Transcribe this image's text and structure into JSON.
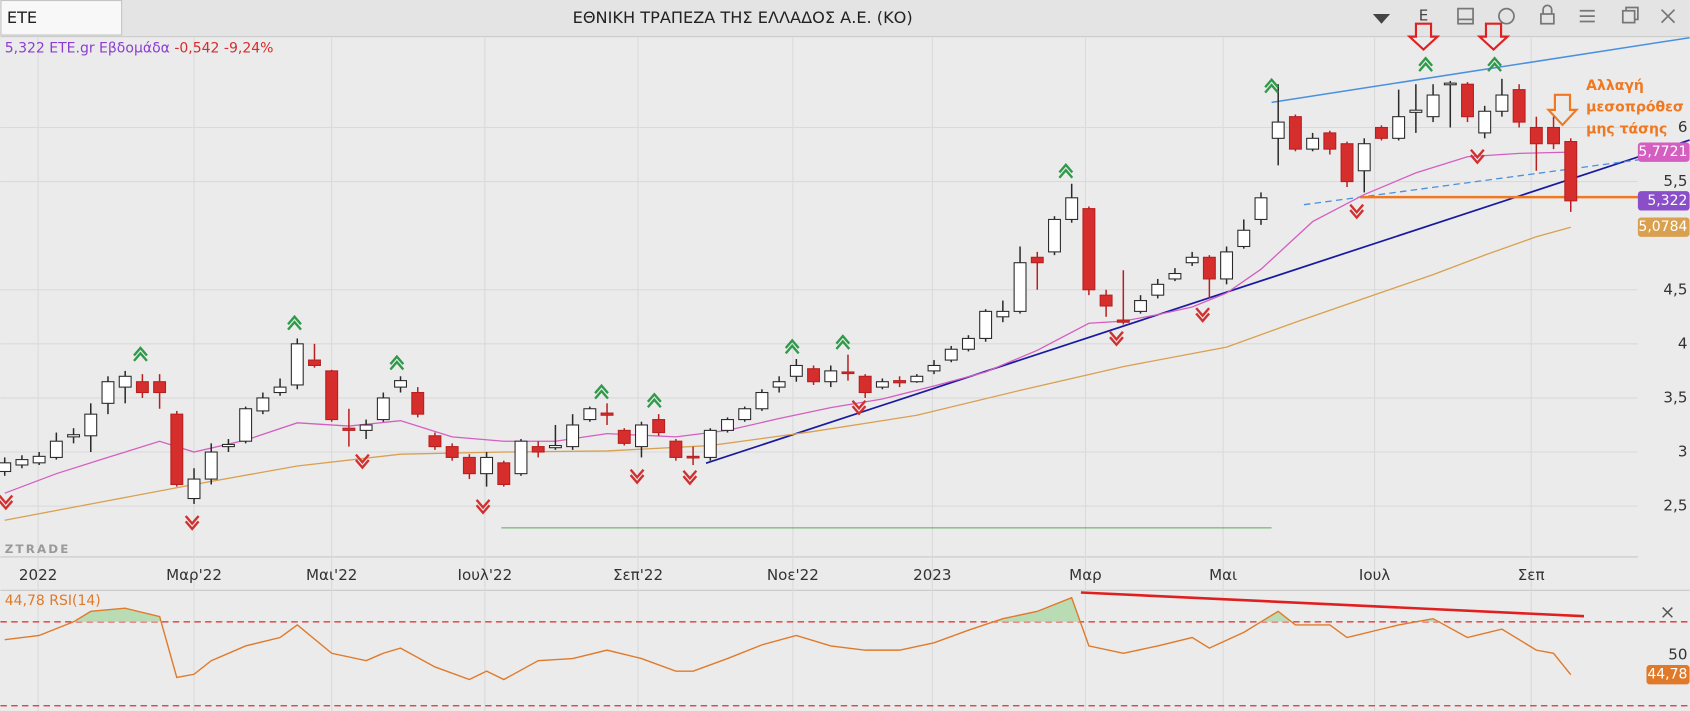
{
  "header": {
    "symbol": "ETE",
    "title": "ΕΘΝΙΚΗ ΤΡΑΠΕΖΑ ΤΗΣ ΕΛΛΑΔΟΣ Α.Ε. (ΚΟ)",
    "toolbar_letter": "Ε"
  },
  "chart_data": [
    {
      "type": "candlestick",
      "legend": {
        "instrument": "5,322 ETE.gr Εβδομάδα",
        "change": "-0,542 -9,24%"
      },
      "watermark": "ZTRADE",
      "annotation": [
        "Αλλαγή",
        "μεσοπρόθεσ",
        "μης τάσης"
      ],
      "open": [
        2.82,
        2.88,
        2.9,
        2.95,
        3.14,
        3.15,
        3.45,
        3.6,
        3.65,
        3.65,
        3.35,
        2.57,
        2.75,
        3.05,
        3.1,
        3.38,
        3.55,
        3.62,
        3.85,
        3.75,
        3.22,
        3.2,
        3.3,
        3.6,
        3.55,
        3.15,
        3.05,
        2.95,
        2.8,
        2.9,
        2.8,
        3.05,
        3.04,
        3.05,
        3.3,
        3.36,
        3.2,
        3.05,
        3.3,
        3.1,
        2.96,
        2.95,
        3.2,
        3.3,
        3.4,
        3.6,
        3.7,
        3.77,
        3.65,
        3.74,
        3.7,
        3.6,
        3.66,
        3.65,
        3.75,
        3.85,
        3.95,
        4.05,
        4.25,
        4.3,
        4.8,
        4.85,
        5.15,
        5.25,
        4.45,
        4.22,
        4.3,
        4.45,
        4.6,
        4.75,
        4.8,
        4.6,
        4.9,
        5.15,
        5.9,
        6.1,
        5.8,
        5.95,
        5.85,
        5.6,
        6.0,
        5.9,
        6.14,
        6.1,
        6.4,
        6.4,
        5.95,
        6.15,
        6.35,
        6.0,
        6.0,
        5.87
      ],
      "high": [
        2.95,
        2.97,
        3.0,
        3.18,
        3.22,
        3.45,
        3.7,
        3.75,
        3.72,
        3.72,
        3.38,
        2.85,
        3.08,
        3.12,
        3.42,
        3.55,
        3.68,
        4.05,
        4.0,
        3.76,
        3.4,
        3.3,
        3.55,
        3.7,
        3.6,
        3.18,
        3.08,
        2.98,
        3.0,
        2.92,
        3.12,
        3.1,
        3.25,
        3.35,
        3.42,
        3.45,
        3.22,
        3.28,
        3.35,
        3.12,
        3.05,
        3.22,
        3.32,
        3.42,
        3.58,
        3.7,
        3.86,
        3.8,
        3.8,
        3.9,
        3.72,
        3.68,
        3.7,
        3.72,
        3.85,
        3.98,
        4.08,
        4.32,
        4.4,
        4.9,
        4.85,
        5.18,
        5.48,
        5.27,
        4.5,
        4.68,
        4.45,
        4.6,
        4.7,
        4.85,
        4.82,
        4.9,
        5.15,
        5.4,
        6.4,
        6.12,
        5.95,
        5.97,
        5.87,
        5.9,
        6.02,
        6.35,
        6.4,
        6.4,
        6.43,
        6.42,
        6.2,
        6.45,
        6.4,
        6.1,
        6.1,
        5.9
      ],
      "low": [
        2.78,
        2.85,
        2.88,
        2.93,
        3.08,
        3.0,
        3.35,
        3.45,
        3.5,
        3.4,
        2.68,
        2.52,
        2.7,
        3.0,
        3.08,
        3.35,
        3.52,
        3.58,
        3.78,
        3.28,
        3.05,
        3.12,
        3.28,
        3.55,
        3.32,
        3.02,
        2.92,
        2.75,
        2.68,
        2.68,
        2.78,
        2.95,
        3.02,
        3.02,
        3.28,
        3.25,
        3.06,
        2.95,
        3.15,
        2.92,
        2.88,
        2.92,
        3.18,
        3.28,
        3.38,
        3.55,
        3.65,
        3.62,
        3.6,
        3.66,
        3.5,
        3.58,
        3.6,
        3.64,
        3.72,
        3.83,
        3.93,
        4.02,
        4.2,
        4.28,
        4.5,
        4.82,
        5.12,
        4.45,
        4.25,
        4.18,
        4.28,
        4.42,
        4.58,
        4.72,
        4.42,
        4.55,
        4.88,
        5.1,
        5.65,
        5.78,
        5.78,
        5.75,
        5.45,
        5.4,
        5.88,
        5.88,
        5.95,
        6.05,
        6.0,
        6.05,
        5.9,
        6.1,
        6.0,
        5.6,
        5.8,
        5.22
      ],
      "close": [
        2.9,
        2.93,
        2.96,
        3.1,
        3.16,
        3.35,
        3.65,
        3.7,
        3.55,
        3.55,
        2.7,
        2.75,
        3.0,
        3.07,
        3.4,
        3.5,
        3.6,
        4.0,
        3.8,
        3.3,
        3.2,
        3.25,
        3.5,
        3.66,
        3.35,
        3.05,
        2.95,
        2.8,
        2.95,
        2.7,
        3.1,
        3.0,
        3.06,
        3.25,
        3.4,
        3.34,
        3.08,
        3.25,
        3.18,
        2.95,
        2.95,
        3.2,
        3.3,
        3.4,
        3.55,
        3.65,
        3.8,
        3.65,
        3.75,
        3.73,
        3.55,
        3.65,
        3.64,
        3.7,
        3.8,
        3.95,
        4.05,
        4.3,
        4.3,
        4.75,
        4.75,
        5.15,
        5.35,
        4.5,
        4.35,
        4.2,
        4.4,
        4.55,
        4.65,
        4.8,
        4.6,
        4.85,
        5.05,
        5.35,
        6.05,
        5.8,
        5.9,
        5.8,
        5.5,
        5.85,
        5.9,
        6.1,
        6.16,
        6.3,
        6.41,
        6.1,
        6.15,
        6.3,
        6.05,
        5.85,
        5.85,
        5.322
      ],
      "up_color": "#ffffff",
      "down_color": "#d62d2d",
      "ma_fast": {
        "color": "#d45fc0",
        "x": [
          0,
          3,
          6,
          9,
          11,
          14,
          17,
          20,
          23,
          26,
          29,
          32,
          35,
          39,
          42,
          45,
          48,
          51,
          54,
          57,
          60,
          63,
          65,
          67,
          69,
          71,
          73,
          76,
          79,
          82,
          85,
          88,
          91
        ],
        "values": [
          2.62,
          2.8,
          2.95,
          3.1,
          3.0,
          3.11,
          3.27,
          3.24,
          3.29,
          3.14,
          3.1,
          3.1,
          3.17,
          3.14,
          3.2,
          3.31,
          3.41,
          3.49,
          3.61,
          3.74,
          3.94,
          4.19,
          4.21,
          4.27,
          4.34,
          4.47,
          4.69,
          5.13,
          5.38,
          5.58,
          5.73,
          5.76,
          5.7721
        ],
        "tag": "5,7721"
      },
      "ma_slow": {
        "color": "#d9a050",
        "x": [
          0,
          6,
          11,
          17,
          23,
          29,
          35,
          41,
          47,
          53,
          59,
          65,
          71,
          75,
          79,
          83,
          86,
          89,
          91
        ],
        "values": [
          2.37,
          2.55,
          2.7,
          2.87,
          2.98,
          3.0,
          3.01,
          3.06,
          3.19,
          3.34,
          3.57,
          3.79,
          3.97,
          4.2,
          4.42,
          4.64,
          4.82,
          4.99,
          5.0784
        ],
        "tag": "5,0784"
      },
      "close_tag": "5,322",
      "xlim": [
        -0.25,
        94.9
      ],
      "xticks": [
        {
          "value": 1.94,
          "label": "2022"
        },
        {
          "value": 11.0,
          "label": "Μαρ'22"
        },
        {
          "value": 19.0,
          "label": "Μαι'22"
        },
        {
          "value": 27.9,
          "label": "Ιουλ'22"
        },
        {
          "value": 36.8,
          "label": "Σεπ'22"
        },
        {
          "value": 45.8,
          "label": "Νοε'22"
        },
        {
          "value": 53.9,
          "label": "2023"
        },
        {
          "value": 62.8,
          "label": "Μαρ"
        },
        {
          "value": 70.8,
          "label": "Μαι"
        },
        {
          "value": 79.6,
          "label": "Ιουλ"
        },
        {
          "value": 88.7,
          "label": "Σεπ"
        }
      ],
      "ylim": [
        2.03,
        6.83
      ],
      "yticks": [
        {
          "value": 2.5,
          "label": "2,5"
        },
        3,
        {
          "value": 3.5,
          "label": "3,5"
        },
        4,
        {
          "value": 4.5,
          "label": "4,5"
        },
        {
          "value": 5.5,
          "label": "5,5"
        },
        6
      ],
      "grid": true
    },
    {
      "type": "line",
      "legend": "44,78 RSI(14)",
      "color": "#e07a2a",
      "overbought_color": "#b9dcb5",
      "x": [
        0,
        2,
        4,
        5,
        7,
        9,
        10,
        11,
        12,
        14,
        16,
        17,
        19,
        21,
        22,
        23,
        25,
        27,
        28,
        29,
        31,
        33,
        35,
        37,
        39,
        40,
        42,
        44,
        46,
        48,
        50,
        52,
        54,
        56,
        58,
        60,
        62,
        63,
        65,
        67,
        69,
        70,
        72,
        74,
        75,
        77,
        78,
        80,
        81,
        83,
        85,
        87,
        89,
        90,
        91
      ],
      "values": [
        61.5,
        63.5,
        70,
        75,
        76.5,
        72.5,
        43.5,
        45,
        51.5,
        58.5,
        62.5,
        68.5,
        55,
        51.5,
        55,
        57.5,
        48.5,
        42.5,
        46.5,
        42.5,
        51.5,
        52.5,
        56.5,
        52.5,
        46.5,
        46.5,
        52.5,
        59,
        63.5,
        58.5,
        56.5,
        56.5,
        60,
        66,
        71.5,
        75,
        81.5,
        58.5,
        55,
        58.5,
        62.5,
        57.5,
        65,
        75,
        68.5,
        68.5,
        62.5,
        66.5,
        68.5,
        71.5,
        62.5,
        66.5,
        56.5,
        55,
        44.78
      ],
      "tag": "44,78",
      "xlim": [
        -0.25,
        94.9
      ],
      "ylim": [
        27.5,
        85
      ],
      "yticks": [
        50
      ],
      "levels": [
        70,
        30
      ]
    }
  ]
}
